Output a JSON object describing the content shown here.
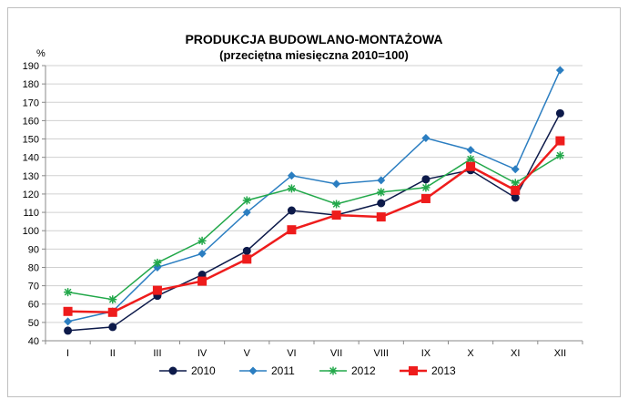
{
  "chart_data": {
    "type": "line",
    "title": "PRODUKCJA BUDOWLANO-MONTAŻOWA",
    "subtitle": "(przeciętna miesięczna 2010=100)",
    "ylabel": "%",
    "xlabel": "",
    "categories": [
      "I",
      "II",
      "III",
      "IV",
      "V",
      "VI",
      "VII",
      "VIII",
      "IX",
      "X",
      "XI",
      "XII"
    ],
    "ylim": [
      40,
      190
    ],
    "ytick_step": 10,
    "grid": true,
    "legend_placement": "bottom",
    "series": [
      {
        "name": "2010",
        "color": "#0d1a4a",
        "marker": "circle",
        "values": [
          45.5,
          47.5,
          64.5,
          76,
          89,
          111,
          108.5,
          115,
          128,
          133,
          118,
          164
        ]
      },
      {
        "name": "2011",
        "color": "#2b7ec1",
        "marker": "diamond",
        "values": [
          50.5,
          56,
          80,
          87.5,
          110,
          130,
          125.5,
          127.5,
          150.5,
          144,
          133.5,
          187.5
        ]
      },
      {
        "name": "2012",
        "color": "#22a84a",
        "marker": "star",
        "values": [
          66.5,
          62.5,
          82.5,
          94.5,
          116.5,
          123,
          114.5,
          121,
          123.5,
          139,
          126,
          141
        ]
      },
      {
        "name": "2013",
        "color": "#ee1c1c",
        "marker": "square",
        "values": [
          56,
          55.5,
          67.5,
          72.5,
          84.5,
          100.5,
          108.5,
          107.5,
          117.5,
          135,
          122,
          149
        ]
      }
    ]
  }
}
